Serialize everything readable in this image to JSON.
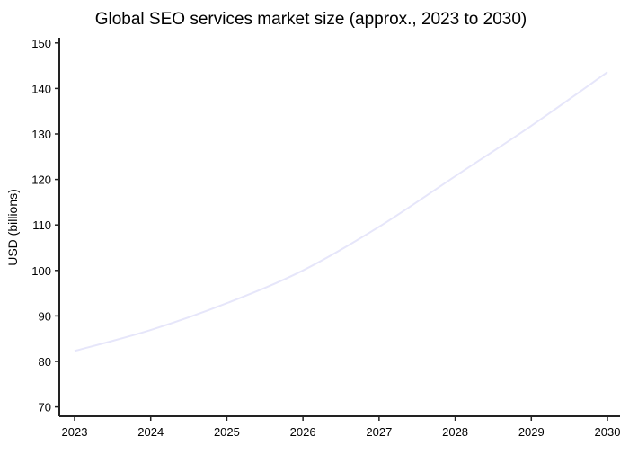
{
  "chart_data": {
    "type": "line",
    "title": "Global SEO services market size (approx., 2023 to 2030)",
    "xlabel": "",
    "ylabel": "USD (billions)",
    "x": [
      2023,
      2024,
      2025,
      2026,
      2027,
      2028,
      2029,
      2030
    ],
    "series": [
      {
        "values": [
          82.3,
          86.9,
          92.8,
          100.0,
          109.6,
          120.7,
          131.8,
          143.6
        ],
        "color": "#e6e6fa"
      }
    ],
    "xticks": [
      "2023",
      "2024",
      "2025",
      "2026",
      "2027",
      "2028",
      "2029",
      "2030"
    ],
    "yticks": [
      "70",
      "80",
      "90",
      "100",
      "110",
      "120",
      "130",
      "140",
      "150"
    ],
    "ylim": [
      68,
      151.5
    ],
    "xlim": [
      2022.8,
      2030.1
    ],
    "grid": false,
    "legend": "none"
  }
}
